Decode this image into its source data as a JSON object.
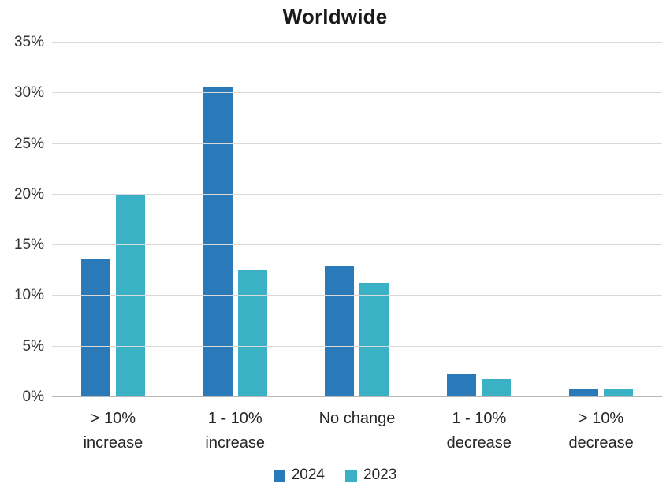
{
  "chart_data": {
    "type": "bar",
    "title": "Worldwide",
    "categories": [
      [
        "> 10%",
        "increase"
      ],
      [
        "1 - 10%",
        "increase"
      ],
      [
        "No change",
        ""
      ],
      [
        "1 - 10%",
        "decrease"
      ],
      [
        "> 10%",
        "decrease"
      ]
    ],
    "series": [
      {
        "name": "2024",
        "color": "#2A79B9",
        "values": [
          13.6,
          30.6,
          12.9,
          2.3,
          0.8
        ]
      },
      {
        "name": "2023",
        "color": "#3BB1C5",
        "values": [
          19.9,
          12.5,
          11.3,
          1.8,
          0.8
        ]
      }
    ],
    "xlabel": "",
    "ylabel": "",
    "ylim": [
      0,
      35
    ],
    "y_tick_step": 5,
    "y_ticks": [
      "0%",
      "5%",
      "10%",
      "15%",
      "20%",
      "25%",
      "30%",
      "35%"
    ],
    "grid": true,
    "legend_position": "bottom"
  }
}
